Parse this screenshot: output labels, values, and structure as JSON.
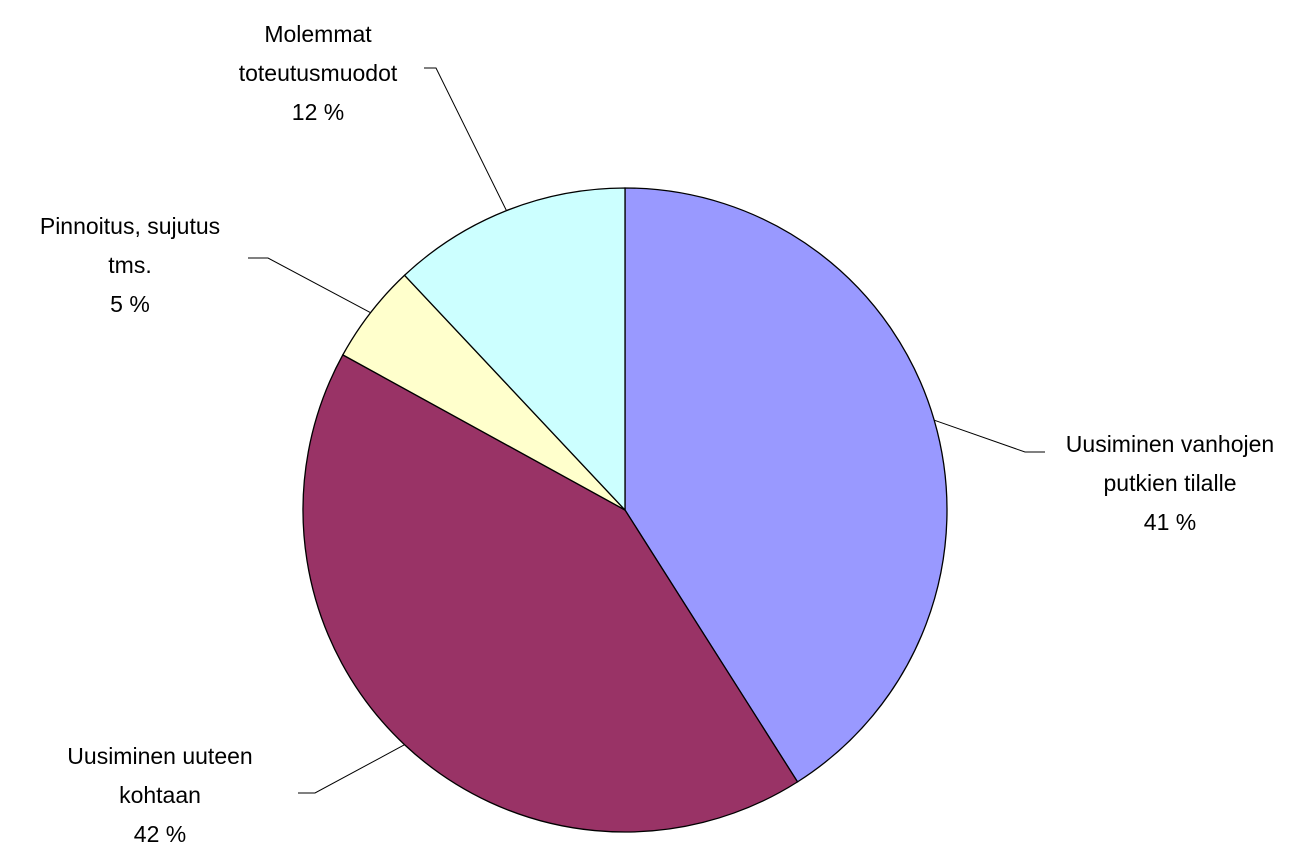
{
  "chart_data": {
    "type": "pie",
    "categories": [
      "Uusiminen vanhojen putkien tilalle",
      "Uusiminen uuteen kohtaan",
      "Pinnoitus, sujutus tms.",
      "Molemmat toteutusmuodot"
    ],
    "values": [
      41,
      42,
      5,
      12
    ],
    "value_labels": [
      "41 %",
      "42 %",
      "5 %",
      "12 %"
    ],
    "colors": [
      "#9999ff",
      "#993366",
      "#ffffcc",
      "#ccffff"
    ]
  }
}
